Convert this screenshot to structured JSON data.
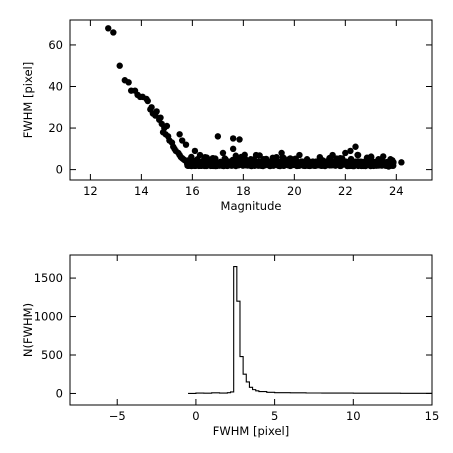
{
  "chart_data": [
    {
      "type": "scatter",
      "title": "",
      "xlabel": "Magnitude",
      "ylabel": "FWHM [pixel]",
      "xlim": [
        11.2,
        25.4
      ],
      "ylim": [
        -5,
        72
      ],
      "xticks": [
        12,
        14,
        16,
        18,
        20,
        22,
        24
      ],
      "yticks": [
        0,
        20,
        40,
        60
      ],
      "marker_color": "#000000",
      "grid": false,
      "points": [
        [
          12.7,
          68
        ],
        [
          12.9,
          66
        ],
        [
          13.15,
          50
        ],
        [
          13.35,
          43
        ],
        [
          13.5,
          42
        ],
        [
          13.6,
          38
        ],
        [
          13.75,
          38
        ],
        [
          13.85,
          36
        ],
        [
          13.95,
          35
        ],
        [
          14.05,
          35
        ],
        [
          14.2,
          34
        ],
        [
          14.25,
          33
        ],
        [
          14.35,
          29
        ],
        [
          14.4,
          30
        ],
        [
          14.45,
          27
        ],
        [
          14.55,
          26
        ],
        [
          14.6,
          28
        ],
        [
          14.7,
          24
        ],
        [
          14.75,
          25
        ],
        [
          14.8,
          22
        ],
        [
          14.85,
          18
        ],
        [
          14.9,
          20
        ],
        [
          14.95,
          17
        ],
        [
          15.0,
          21
        ],
        [
          15.05,
          16
        ],
        [
          15.1,
          14
        ],
        [
          15.2,
          13
        ],
        [
          15.25,
          11
        ],
        [
          15.3,
          10
        ],
        [
          15.35,
          9
        ],
        [
          15.45,
          8
        ],
        [
          15.5,
          7
        ],
        [
          15.55,
          6
        ],
        [
          15.6,
          5.5
        ],
        [
          15.65,
          5
        ],
        [
          15.7,
          4.5
        ],
        [
          15.8,
          4
        ],
        [
          15.9,
          3.5
        ],
        [
          16.0,
          3.2
        ],
        [
          15.5,
          17
        ],
        [
          15.6,
          14
        ],
        [
          15.75,
          12
        ],
        [
          16.1,
          9
        ],
        [
          16.3,
          7
        ],
        [
          16.5,
          6
        ],
        [
          16.2,
          5
        ],
        [
          16.6,
          4
        ],
        [
          17.0,
          16
        ],
        [
          17.6,
          15
        ],
        [
          17.85,
          14.5
        ],
        [
          17.6,
          10
        ],
        [
          17.2,
          8
        ],
        [
          18.5,
          7
        ],
        [
          19.5,
          8
        ],
        [
          19.3,
          6
        ],
        [
          20.2,
          7
        ],
        [
          21.0,
          6
        ],
        [
          21.5,
          7
        ],
        [
          22.0,
          8
        ],
        [
          22.4,
          11
        ],
        [
          22.2,
          9
        ],
        [
          22.5,
          7
        ],
        [
          23.0,
          6
        ],
        [
          23.3,
          5
        ],
        [
          23.8,
          4
        ],
        [
          24.2,
          3.5
        ],
        [
          23.7,
          1.5
        ],
        [
          18.8,
          5
        ],
        [
          19.8,
          5
        ],
        [
          20.5,
          5
        ],
        [
          21.8,
          5.5
        ],
        [
          17.3,
          5
        ],
        [
          16.8,
          5.5
        ]
      ],
      "band": {
        "description_points_count": 900,
        "x_range": [
          15.8,
          23.9
        ],
        "y_center": 2.8,
        "y_spread": 2.2
      }
    },
    {
      "type": "line",
      "title": "",
      "xlabel": "FWHM  [pixel]",
      "ylabel": "N(FWHM)",
      "xlim": [
        -8,
        15
      ],
      "ylim": [
        -150,
        1800
      ],
      "xticks": [
        -5,
        0,
        5,
        10,
        15
      ],
      "yticks": [
        0,
        500,
        1000,
        1500
      ],
      "step": true,
      "series": [
        {
          "x": [
            -0.5,
            0,
            0.5,
            1,
            1.5,
            2,
            2.2,
            2.4,
            2.6,
            2.8,
            3.0,
            3.2,
            3.4,
            3.6,
            3.8,
            4.0,
            4.5,
            5,
            6,
            7,
            8,
            9,
            10,
            11,
            12,
            13,
            14,
            15
          ],
          "values": [
            0,
            5,
            3,
            8,
            5,
            10,
            20,
            1650,
            1200,
            480,
            250,
            150,
            80,
            50,
            35,
            25,
            15,
            10,
            8,
            6,
            5,
            5,
            4,
            3,
            3,
            2,
            2,
            0
          ]
        }
      ]
    }
  ]
}
